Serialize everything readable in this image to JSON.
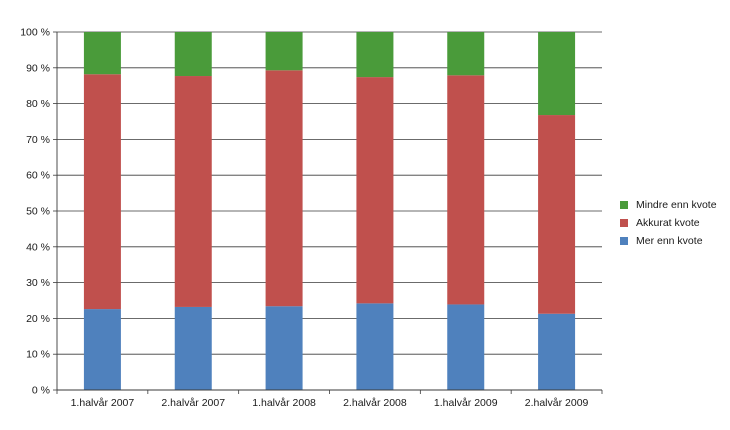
{
  "chart_data": {
    "type": "bar",
    "stacked": true,
    "categories": [
      "1.halvår 2007",
      "2.halvår 2007",
      "1.halvår 2008",
      "2.halvår 2008",
      "1.halvår 2009",
      "2.halvår 2009"
    ],
    "series": [
      {
        "name": "Mer enn kvote",
        "color": "#4f81bd",
        "values": [
          22.6,
          23.2,
          23.4,
          24.2,
          23.9,
          21.3
        ]
      },
      {
        "name": "Akkurat kvote",
        "color": "#c0504d",
        "values": [
          65.6,
          64.5,
          65.9,
          63.2,
          64.0,
          55.5
        ]
      },
      {
        "name": "Mindre enn kvote",
        "color": "#4a9b3a",
        "values": [
          11.8,
          12.3,
          10.7,
          12.6,
          12.1,
          23.2
        ]
      }
    ],
    "ylim": [
      0,
      100
    ],
    "yticks": [
      "0 %",
      "10 %",
      "20 %",
      "30 %",
      "40 %",
      "50 %",
      "60 %",
      "70 %",
      "80 %",
      "90 %",
      "100 %"
    ],
    "grid": true,
    "legend_position": "right",
    "legend_order": [
      "Mindre enn kvote",
      "Akkurat kvote",
      "Mer enn kvote"
    ]
  }
}
